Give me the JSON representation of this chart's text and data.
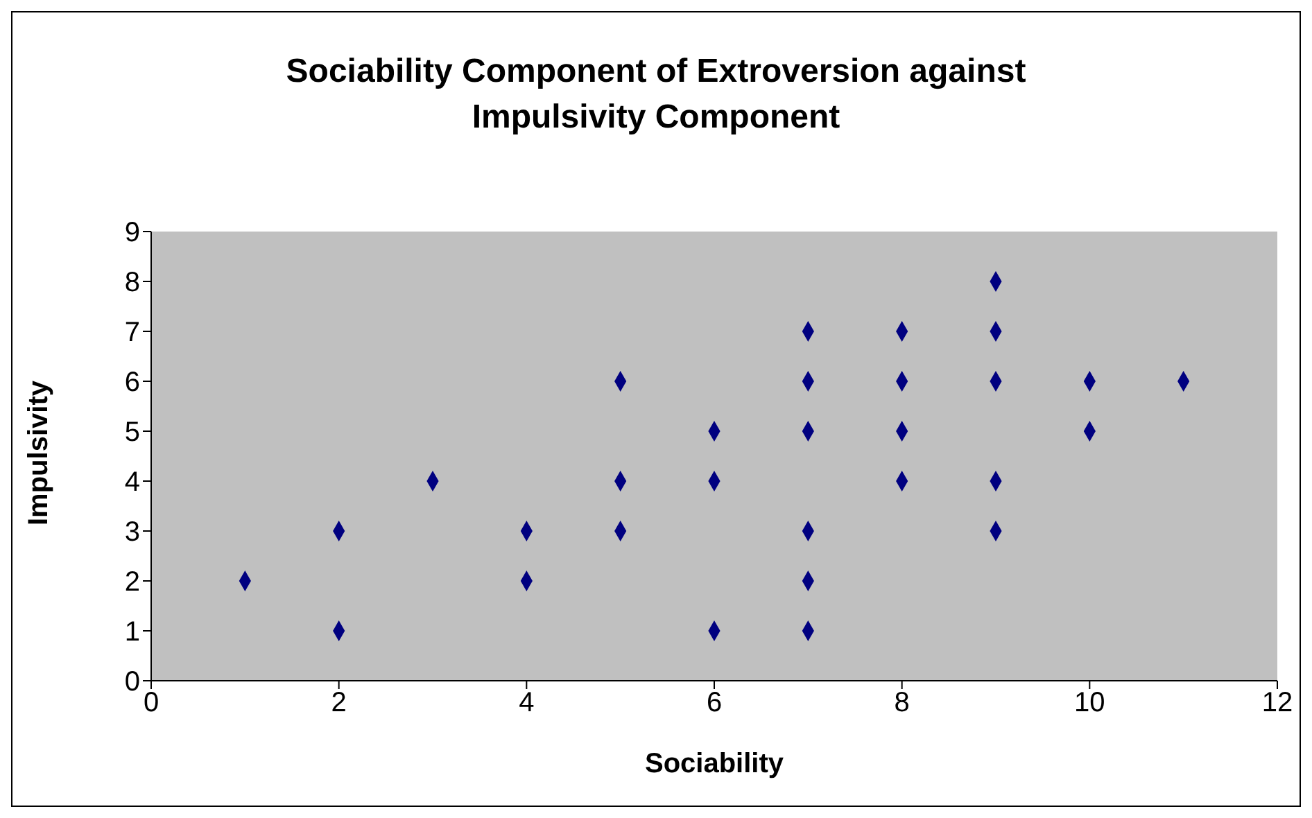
{
  "chart_data": {
    "type": "scatter",
    "title": "Sociability Component of Extroversion against Impulsivity Component",
    "xlabel": "Sociability",
    "ylabel": "Impulsivity",
    "x": [
      1,
      2,
      2,
      3,
      4,
      4,
      5,
      5,
      5,
      6,
      6,
      6,
      7,
      7,
      7,
      7,
      7,
      7,
      8,
      8,
      8,
      8,
      9,
      9,
      9,
      9,
      9,
      10,
      10,
      11
    ],
    "values": [
      2,
      3,
      1,
      4,
      3,
      2,
      6,
      4,
      3,
      5,
      4,
      1,
      7,
      6,
      5,
      3,
      2,
      1,
      7,
      6,
      5,
      4,
      8,
      7,
      6,
      4,
      3,
      6,
      5,
      6
    ],
    "color": "#000080",
    "marker": "diamond",
    "grid": false,
    "legend": false,
    "xlim": [
      0,
      12
    ],
    "xticks": [
      0,
      2,
      4,
      6,
      8,
      10,
      12
    ],
    "ylim": [
      0,
      9
    ],
    "yticks": [
      0,
      1,
      2,
      3,
      4,
      5,
      6,
      7,
      8,
      9
    ]
  }
}
